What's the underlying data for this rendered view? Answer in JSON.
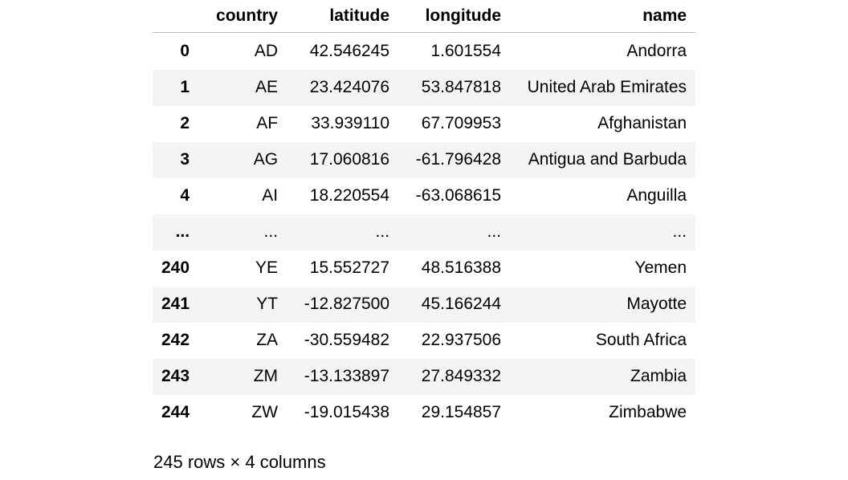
{
  "table": {
    "columns": [
      "",
      "country",
      "latitude",
      "longitude",
      "name"
    ],
    "rows": [
      {
        "index": "0",
        "country": "AD",
        "latitude": "42.546245",
        "longitude": "1.601554",
        "name": "Andorra"
      },
      {
        "index": "1",
        "country": "AE",
        "latitude": "23.424076",
        "longitude": "53.847818",
        "name": "United Arab Emirates"
      },
      {
        "index": "2",
        "country": "AF",
        "latitude": "33.939110",
        "longitude": "67.709953",
        "name": "Afghanistan"
      },
      {
        "index": "3",
        "country": "AG",
        "latitude": "17.060816",
        "longitude": "-61.796428",
        "name": "Antigua and Barbuda"
      },
      {
        "index": "4",
        "country": "AI",
        "latitude": "18.220554",
        "longitude": "-63.068615",
        "name": "Anguilla"
      },
      {
        "index": "...",
        "country": "...",
        "latitude": "...",
        "longitude": "...",
        "name": "..."
      },
      {
        "index": "240",
        "country": "YE",
        "latitude": "15.552727",
        "longitude": "48.516388",
        "name": "Yemen"
      },
      {
        "index": "241",
        "country": "YT",
        "latitude": "-12.827500",
        "longitude": "45.166244",
        "name": "Mayotte"
      },
      {
        "index": "242",
        "country": "ZA",
        "latitude": "-30.559482",
        "longitude": "22.937506",
        "name": "South Africa"
      },
      {
        "index": "243",
        "country": "ZM",
        "latitude": "-13.133897",
        "longitude": "27.849332",
        "name": "Zambia"
      },
      {
        "index": "244",
        "country": "ZW",
        "latitude": "-19.015438",
        "longitude": "29.154857",
        "name": "Zimbabwe"
      }
    ]
  },
  "summary": "245 rows × 4 columns"
}
